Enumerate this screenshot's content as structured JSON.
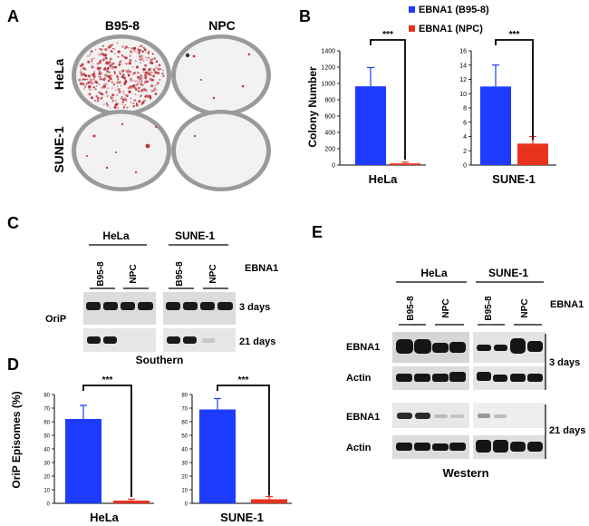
{
  "panel_letters": {
    "a": "A",
    "b": "B",
    "c": "C",
    "d": "D",
    "e": "E"
  },
  "panel_a": {
    "col_headers": [
      "B95-8",
      "NPC"
    ],
    "row_headers": [
      "HeLa",
      "SUNE-1"
    ],
    "colors": {
      "colony": "#c0303a",
      "plate_rim": "#9a9a9a",
      "plate_fill": "#e8e8e8"
    }
  },
  "panel_b": {
    "legend": [
      {
        "label": "EBNA1 (B95-8)",
        "color": "#1e3cff"
      },
      {
        "label": "EBNA1 (NPC)",
        "color": "#e8321e"
      }
    ],
    "ylabel": "Colony Number",
    "significance": "***"
  },
  "panel_c": {
    "cell_lines": [
      "HeLa",
      "SUNE-1"
    ],
    "lane_labels": [
      "B95-8",
      "NPC",
      "B95-8",
      "NPC"
    ],
    "lane_row_label": "EBNA1",
    "probe_label": "OriP",
    "timepoints": [
      "3 days",
      "21 days"
    ],
    "method": "Southern"
  },
  "panel_d": {
    "ylabel": "OriP Episomes (%)",
    "significance": "***"
  },
  "panel_e": {
    "cell_lines": [
      "HeLa",
      "SUNE-1"
    ],
    "lane_labels": [
      "B95-8",
      "NPC",
      "B95-8",
      "NPC"
    ],
    "lane_row_label": "EBNA1",
    "blot_labels": [
      "EBNA1",
      "Actin",
      "EBNA1",
      "Actin"
    ],
    "timepoints": [
      "3 days",
      "21 days"
    ],
    "method": "Western"
  },
  "chart_data": [
    {
      "panel": "B",
      "type": "bar",
      "xlabel": "HeLa",
      "ylabel": "Colony Number",
      "categories": [
        "EBNA1 (B95-8)",
        "EBNA1 (NPC)"
      ],
      "values": [
        965,
        20
      ],
      "errors": [
        230,
        15
      ],
      "ylim": [
        0,
        1400
      ],
      "yticks": [
        0,
        200,
        400,
        600,
        800,
        1000,
        1200,
        1400
      ],
      "significance": "***"
    },
    {
      "panel": "B",
      "type": "bar",
      "xlabel": "SUNE-1",
      "categories": [
        "EBNA1 (B95-8)",
        "EBNA1 (NPC)"
      ],
      "values": [
        11,
        3
      ],
      "errors": [
        3,
        1
      ],
      "ylim": [
        0,
        16
      ],
      "yticks": [
        0,
        2,
        4,
        6,
        8,
        10,
        12,
        14,
        16
      ],
      "significance": "***"
    },
    {
      "panel": "D",
      "type": "bar",
      "xlabel": "HeLa",
      "ylabel": "OriP Episomes (%)",
      "categories": [
        "EBNA1 (B95-8)",
        "EBNA1 (NPC)"
      ],
      "values": [
        62,
        2
      ],
      "errors": [
        10,
        1
      ],
      "ylim": [
        0,
        80
      ],
      "yticks": [
        0,
        10,
        20,
        30,
        40,
        50,
        60,
        70,
        80
      ],
      "significance": "***"
    },
    {
      "panel": "D",
      "type": "bar",
      "xlabel": "SUNE-1",
      "categories": [
        "EBNA1 (B95-8)",
        "EBNA1 (NPC)"
      ],
      "values": [
        69,
        3
      ],
      "errors": [
        8,
        2
      ],
      "ylim": [
        0,
        80
      ],
      "yticks": [
        0,
        10,
        20,
        30,
        40,
        50,
        60,
        70,
        80
      ],
      "significance": "***"
    }
  ]
}
